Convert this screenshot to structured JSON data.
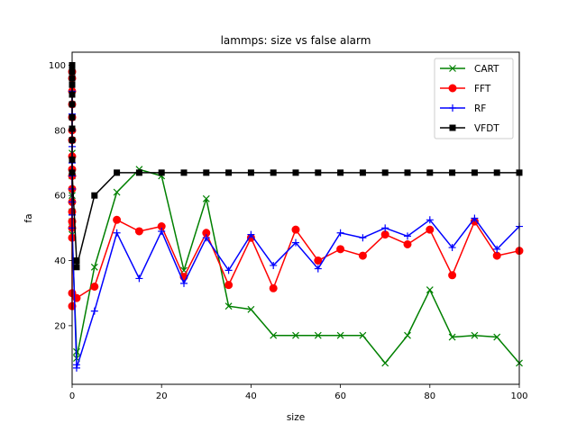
{
  "chart_data": {
    "type": "line",
    "title": "lammps: size vs false alarm",
    "xlabel": "size",
    "ylabel": "fa",
    "xlim": [
      0,
      100
    ],
    "ylim": [
      2,
      104
    ],
    "xticks": [
      0,
      20,
      40,
      60,
      80,
      100
    ],
    "yticks": [
      20,
      40,
      60,
      80,
      100
    ],
    "legend_position": "top-right",
    "series": [
      {
        "name": "CART",
        "color": "#008000",
        "marker": "x",
        "points": [
          [
            0,
            73
          ],
          [
            0,
            66
          ],
          [
            0,
            60
          ],
          [
            0,
            55
          ],
          [
            0,
            52
          ],
          [
            0,
            48
          ],
          [
            1,
            12
          ],
          [
            1,
            10
          ],
          [
            5,
            38
          ],
          [
            10,
            61
          ],
          [
            15,
            68
          ],
          [
            20,
            66
          ],
          [
            25,
            37
          ],
          [
            30,
            59
          ],
          [
            35,
            26
          ],
          [
            40,
            25
          ],
          [
            45,
            17
          ],
          [
            50,
            17
          ],
          [
            55,
            17
          ],
          [
            60,
            17
          ],
          [
            65,
            17
          ],
          [
            70,
            8.5
          ],
          [
            75,
            17
          ],
          [
            80,
            31
          ],
          [
            85,
            16.5
          ],
          [
            90,
            17
          ],
          [
            95,
            16.5
          ],
          [
            100,
            8.5
          ]
        ]
      },
      {
        "name": "FFT",
        "color": "#ff0000",
        "marker": "circle",
        "points": [
          [
            0,
            98
          ],
          [
            0,
            96
          ],
          [
            0,
            92
          ],
          [
            0,
            88
          ],
          [
            0,
            84
          ],
          [
            0,
            80
          ],
          [
            0,
            77
          ],
          [
            0,
            72
          ],
          [
            0,
            68
          ],
          [
            0,
            66
          ],
          [
            0,
            62
          ],
          [
            0,
            58
          ],
          [
            0,
            55
          ],
          [
            0,
            52
          ],
          [
            0,
            50
          ],
          [
            0,
            47
          ],
          [
            0,
            30
          ],
          [
            0,
            26
          ],
          [
            1,
            28.5
          ],
          [
            5,
            32
          ],
          [
            10,
            52.5
          ],
          [
            15,
            49
          ],
          [
            20,
            50.5
          ],
          [
            25,
            35
          ],
          [
            30,
            48.5
          ],
          [
            35,
            32.5
          ],
          [
            40,
            47
          ],
          [
            45,
            31.5
          ],
          [
            50,
            49.5
          ],
          [
            55,
            40
          ],
          [
            60,
            43.5
          ],
          [
            65,
            41.5
          ],
          [
            70,
            48
          ],
          [
            75,
            45
          ],
          [
            80,
            49.5
          ],
          [
            85,
            35.5
          ],
          [
            90,
            52
          ],
          [
            95,
            41.5
          ],
          [
            100,
            43
          ]
        ]
      },
      {
        "name": "RF",
        "color": "#0000ff",
        "marker": "plus",
        "points": [
          [
            0,
            92
          ],
          [
            0,
            85
          ],
          [
            0,
            80
          ],
          [
            0,
            75
          ],
          [
            0,
            70
          ],
          [
            0,
            66
          ],
          [
            0,
            62
          ],
          [
            0,
            58
          ],
          [
            0,
            54
          ],
          [
            0,
            50
          ],
          [
            1,
            8
          ],
          [
            1,
            7
          ],
          [
            5,
            24.5
          ],
          [
            10,
            48.5
          ],
          [
            15,
            34.5
          ],
          [
            20,
            49
          ],
          [
            25,
            33
          ],
          [
            30,
            47
          ],
          [
            35,
            37
          ],
          [
            40,
            48
          ],
          [
            45,
            38.5
          ],
          [
            50,
            45.5
          ],
          [
            55,
            37.5
          ],
          [
            60,
            48.5
          ],
          [
            65,
            47
          ],
          [
            70,
            50
          ],
          [
            75,
            47.5
          ],
          [
            80,
            52.5
          ],
          [
            85,
            44
          ],
          [
            90,
            53
          ],
          [
            95,
            43.5
          ],
          [
            100,
            50.5
          ]
        ]
      },
      {
        "name": "VFDT",
        "color": "#000000",
        "marker": "square",
        "points": [
          [
            0,
            100
          ],
          [
            0,
            99
          ],
          [
            0,
            98
          ],
          [
            0,
            96
          ],
          [
            0,
            94
          ],
          [
            0,
            91
          ],
          [
            0,
            88
          ],
          [
            0,
            84
          ],
          [
            0,
            80.5
          ],
          [
            0,
            77
          ],
          [
            0,
            71
          ],
          [
            0,
            67
          ],
          [
            1,
            40
          ],
          [
            1,
            38
          ],
          [
            5,
            60
          ],
          [
            10,
            67
          ],
          [
            15,
            67
          ],
          [
            20,
            67
          ],
          [
            25,
            67
          ],
          [
            30,
            67
          ],
          [
            35,
            67
          ],
          [
            40,
            67
          ],
          [
            45,
            67
          ],
          [
            50,
            67
          ],
          [
            55,
            67
          ],
          [
            60,
            67
          ],
          [
            65,
            67
          ],
          [
            70,
            67
          ],
          [
            75,
            67
          ],
          [
            80,
            67
          ],
          [
            85,
            67
          ],
          [
            90,
            67
          ],
          [
            95,
            67
          ],
          [
            100,
            67
          ]
        ]
      }
    ]
  }
}
